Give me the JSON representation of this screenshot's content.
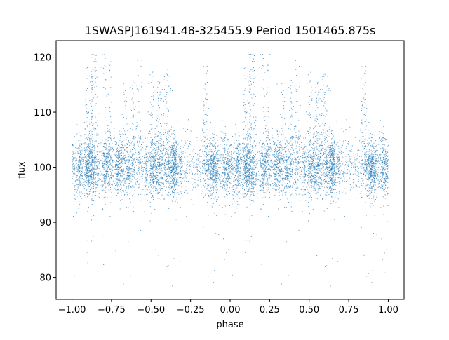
{
  "chart_data": {
    "type": "scatter",
    "title": "1SWASPJ161941.48-325455.9 Period 1501465.875s",
    "xlabel": "phase",
    "ylabel": "flux",
    "xlim": [
      -1.1,
      1.1
    ],
    "ylim": [
      76,
      123
    ],
    "x_ticks": [
      -1.0,
      -0.75,
      -0.5,
      -0.25,
      0.0,
      0.25,
      0.5,
      0.75,
      1.0
    ],
    "x_tick_labels": [
      "−1.00",
      "−0.75",
      "−0.50",
      "−0.25",
      "0.00",
      "0.25",
      "0.50",
      "0.75",
      "1.00"
    ],
    "y_ticks": [
      80,
      90,
      100,
      110,
      120
    ],
    "y_tick_labels": [
      "80",
      "90",
      "100",
      "110",
      "120"
    ],
    "grid": false,
    "legend": "none",
    "marker_color": "#1f77b4",
    "series": [
      {
        "phase_range": [
          -1.0,
          1.0
        ],
        "baseline_flux": 100,
        "typical_scatter": [
          93,
          107
        ],
        "outlier_range": [
          78,
          120
        ]
      }
    ]
  }
}
